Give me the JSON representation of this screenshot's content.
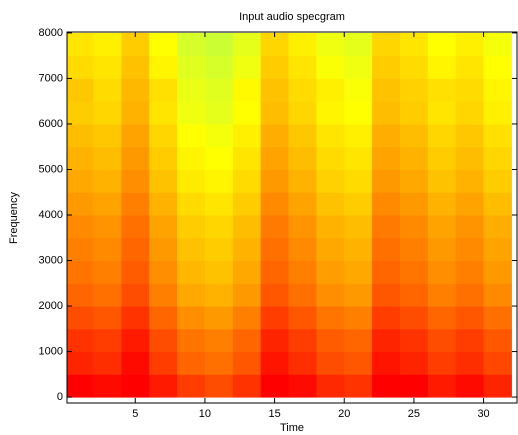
{
  "chart_data": {
    "type": "heatmap",
    "title": "Input audio specgram",
    "xlabel": "Time",
    "ylabel": "Frequency",
    "xlim": [
      0.1,
      32.4
    ],
    "ylim": [
      -130,
      8020
    ],
    "xticks": [
      5,
      10,
      15,
      20,
      25,
      30
    ],
    "yticks": [
      0,
      1000,
      2000,
      3000,
      4000,
      5000,
      6000,
      7000,
      8000
    ],
    "x_edges": [
      0,
      2,
      4,
      6,
      8,
      10,
      12,
      14,
      16,
      18,
      20,
      22,
      24,
      26,
      28,
      30,
      32
    ],
    "y_edges": [
      0,
      500,
      1000,
      1500,
      2000,
      2500,
      3000,
      3500,
      4000,
      4500,
      5000,
      5500,
      6000,
      6500,
      7000,
      7500,
      8000
    ],
    "zlim": [
      0,
      100
    ],
    "colormap": [
      "#00ffff",
      "#ffff00",
      "#ff0000"
    ],
    "z": [
      [
        100,
        98,
        100,
        95,
        88,
        85,
        90,
        100,
        98,
        92,
        90,
        100,
        100,
        95,
        98,
        93
      ],
      [
        93,
        91,
        98,
        88,
        80,
        78,
        83,
        96,
        91,
        85,
        83,
        96,
        93,
        88,
        91,
        86
      ],
      [
        90,
        88,
        95,
        85,
        77,
        75,
        80,
        93,
        88,
        82,
        80,
        93,
        90,
        85,
        88,
        83
      ],
      [
        85,
        83,
        90,
        80,
        72,
        70,
        75,
        88,
        83,
        77,
        75,
        88,
        85,
        80,
        83,
        78
      ],
      [
        80,
        78,
        85,
        75,
        67,
        65,
        70,
        83,
        78,
        72,
        70,
        83,
        80,
        75,
        78,
        73
      ],
      [
        77,
        75,
        82,
        72,
        64,
        62,
        67,
        80,
        75,
        69,
        67,
        80,
        77,
        72,
        75,
        70
      ],
      [
        75,
        73,
        80,
        70,
        62,
        60,
        65,
        78,
        73,
        67,
        65,
        78,
        75,
        70,
        73,
        68
      ],
      [
        73,
        71,
        78,
        68,
        60,
        58,
        63,
        76,
        71,
        65,
        63,
        76,
        73,
        68,
        71,
        66
      ],
      [
        70,
        68,
        75,
        65,
        57,
        55,
        60,
        73,
        68,
        62,
        60,
        73,
        70,
        65,
        68,
        63
      ],
      [
        67,
        65,
        72,
        62,
        54,
        52,
        57,
        70,
        65,
        59,
        57,
        70,
        67,
        62,
        65,
        60
      ],
      [
        65,
        63,
        70,
        60,
        52,
        50,
        55,
        68,
        63,
        57,
        55,
        68,
        65,
        60,
        63,
        58
      ],
      [
        63,
        61,
        68,
        58,
        50,
        48,
        53,
        66,
        61,
        55,
        53,
        66,
        63,
        58,
        61,
        56
      ],
      [
        60,
        58,
        65,
        55,
        47,
        45,
        50,
        63,
        58,
        52,
        50,
        63,
        60,
        55,
        58,
        53
      ],
      [
        61,
        57,
        64,
        56,
        46,
        44,
        51,
        62,
        57,
        53,
        49,
        62,
        59,
        56,
        57,
        52
      ],
      [
        57,
        55,
        62,
        52,
        44,
        42,
        47,
        60,
        55,
        49,
        47,
        60,
        57,
        52,
        55,
        50
      ],
      [
        55,
        53,
        60,
        50,
        42,
        40,
        45,
        58,
        53,
        47,
        45,
        58,
        55,
        50,
        53,
        48
      ]
    ]
  }
}
